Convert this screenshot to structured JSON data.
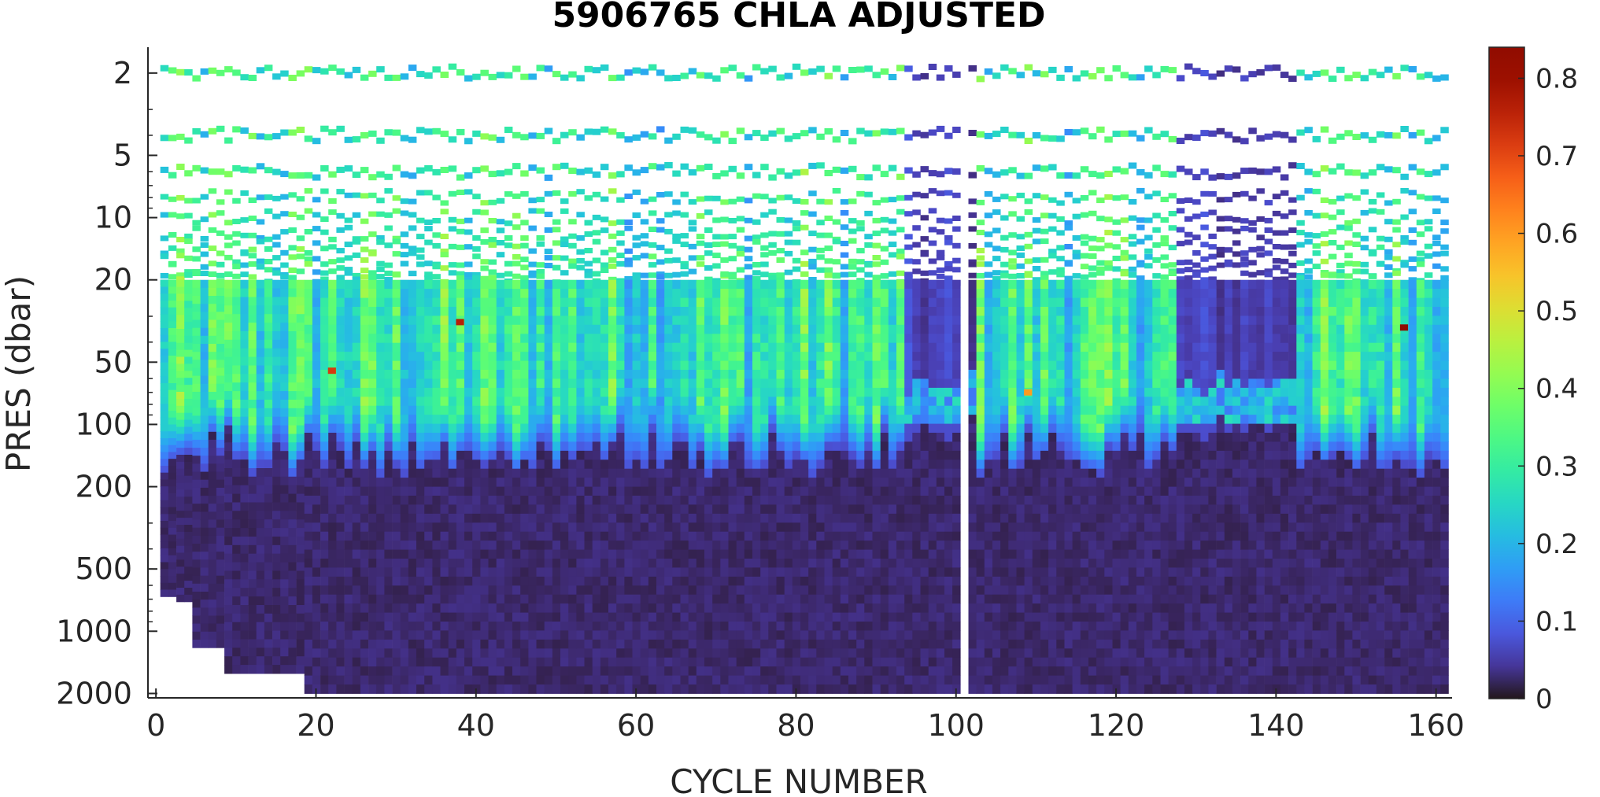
{
  "chart_data": {
    "type": "heatmap",
    "title": "5906765  CHLA ADJUSTED",
    "xlabel": "CYCLE NUMBER",
    "ylabel": "PRES (dbar)",
    "x_range": [
      -1,
      162
    ],
    "y_range": [
      1.5,
      2100
    ],
    "y_scale": "log",
    "y_reversed": true,
    "x_ticks": [
      0,
      20,
      40,
      60,
      80,
      100,
      120,
      140,
      160
    ],
    "x_tick_labels": [
      "0",
      "20",
      "40",
      "60",
      "80",
      "100",
      "120",
      "140",
      "160"
    ],
    "y_ticks": [
      2,
      5,
      10,
      20,
      50,
      100,
      200,
      500,
      1000,
      2000
    ],
    "y_tick_labels": [
      "2",
      "5",
      "10",
      "20",
      "50",
      "100",
      "200",
      "500",
      "1000",
      "2000"
    ],
    "colorbar": {
      "colormap": "turbo",
      "range": [
        0,
        0.84
      ],
      "ticks": [
        0,
        0.1,
        0.2,
        0.3,
        0.4,
        0.5,
        0.6,
        0.7,
        0.8
      ],
      "tick_labels": [
        "0",
        "0.1",
        "0.2",
        "0.3",
        "0.4",
        "0.5",
        "0.6",
        "0.7",
        "0.8"
      ]
    },
    "cycles": [
      1,
      161
    ],
    "near_surface_levels_dbar": [
      2,
      4,
      6,
      8,
      10,
      12,
      14,
      16,
      18,
      20
    ],
    "profile_max_depth_dbar": {
      "cycles_1_3": 680,
      "cycles_3_5": 720,
      "cycles_5_9": 1200,
      "cycles_9_19": 1600,
      "cycles_19_161": 2000
    },
    "chlorophyll_max_depth_dbar_typical": 50,
    "mixed_layer_bottom_dbar_typical": 150,
    "low_chla_periods": [
      [
        94,
        102
      ],
      [
        128,
        142
      ]
    ],
    "missing_cycles": [
      101
    ],
    "hotspots": [
      {
        "cycle": 22,
        "pres": 55,
        "value": 0.72
      },
      {
        "cycle": 38,
        "pres": 32,
        "value": 0.76
      },
      {
        "cycle": 109,
        "pres": 70,
        "value": 0.6
      },
      {
        "cycle": 156,
        "pres": 34,
        "value": 0.84
      }
    ],
    "value_range_typical": {
      "surface": [
        0.15,
        0.4
      ],
      "deep": [
        0,
        0.03
      ]
    }
  }
}
